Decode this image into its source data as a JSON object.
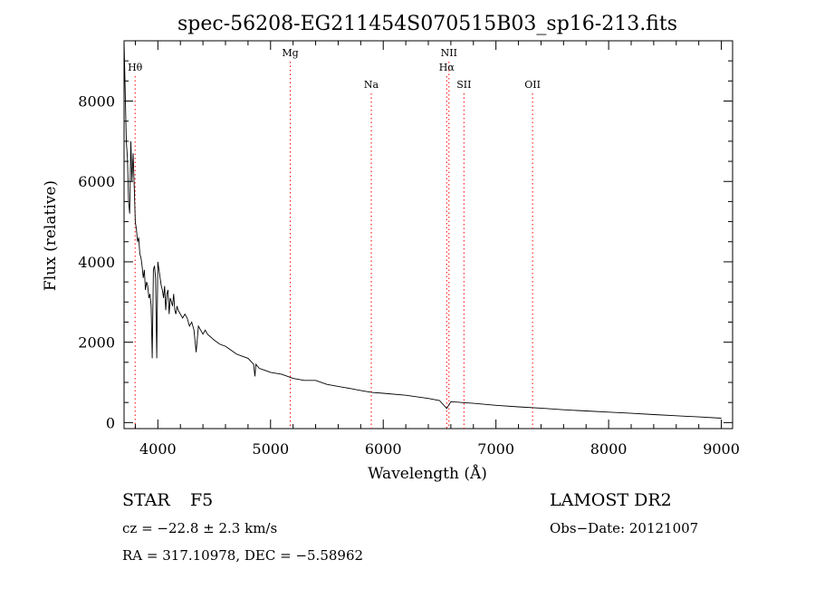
{
  "chart_data": {
    "type": "line",
    "title": "spec-56208-EG211454S070515B03_sp16-213.fits",
    "xlabel": "Wavelength (Å)",
    "ylabel": "Flux (relative)",
    "xlim": [
      3700,
      9100
    ],
    "ylim": [
      -150,
      9500
    ],
    "xticks": [
      4000,
      5000,
      6000,
      7000,
      8000,
      9000
    ],
    "yticks": [
      0,
      2000,
      4000,
      6000,
      8000
    ],
    "grid": false,
    "line_color": "#000000",
    "marker_color": "#ff0000",
    "series": [
      {
        "x": [
          3700,
          3710,
          3720,
          3730,
          3740,
          3750,
          3760,
          3770,
          3780,
          3790,
          3800,
          3810,
          3820,
          3830,
          3840,
          3850,
          3860,
          3870,
          3880,
          3890,
          3900,
          3910,
          3920,
          3930,
          3940,
          3950,
          3960,
          3970,
          3980,
          3990,
          4000,
          4010,
          4020,
          4030,
          4040,
          4050,
          4060,
          4070,
          4080,
          4090,
          4100,
          4110,
          4120,
          4130,
          4140,
          4150,
          4160,
          4170,
          4180,
          4200,
          4220,
          4240,
          4260,
          4280,
          4300,
          4320,
          4340,
          4360,
          4380,
          4400,
          4420,
          4440,
          4460,
          4480,
          4500,
          4550,
          4600,
          4650,
          4700,
          4750,
          4800,
          4850,
          4861,
          4870,
          4900,
          4950,
          5000,
          5100,
          5200,
          5300,
          5400,
          5500,
          5600,
          5700,
          5800,
          5900,
          6000,
          6200,
          6400,
          6500,
          6563,
          6600,
          6800,
          7000,
          7200,
          7400,
          7600,
          7800,
          8000,
          8200,
          8400,
          8600,
          8800,
          9000
        ],
        "y": [
          9500,
          8300,
          7000,
          6600,
          5500,
          5200,
          7000,
          6000,
          6700,
          5900,
          5000,
          4800,
          4500,
          4600,
          4200,
          4100,
          3900,
          3600,
          3800,
          3300,
          3500,
          3400,
          3100,
          3200,
          2900,
          1600,
          3800,
          3900,
          3600,
          1600,
          4000,
          3800,
          3600,
          3400,
          3300,
          3100,
          3400,
          2800,
          3200,
          3300,
          2700,
          3100,
          3000,
          2900,
          3200,
          2800,
          2700,
          2900,
          2800,
          2700,
          2600,
          2700,
          2600,
          2400,
          2500,
          2300,
          1750,
          2400,
          2300,
          2200,
          2300,
          2200,
          2150,
          2100,
          2050,
          1950,
          1900,
          1800,
          1700,
          1650,
          1600,
          1450,
          1150,
          1450,
          1350,
          1300,
          1250,
          1200,
          1100,
          1050,
          1050,
          950,
          900,
          850,
          800,
          750,
          730,
          680,
          600,
          550,
          350,
          520,
          480,
          430,
          390,
          360,
          320,
          290,
          260,
          230,
          200,
          170,
          140,
          110
        ]
      }
    ],
    "line_markers": [
      {
        "label": "Hθ",
        "x": 3798,
        "label_row": 1
      },
      {
        "label": "Mg",
        "x": 5175,
        "label_row": 0
      },
      {
        "label": "Na",
        "x": 5894,
        "label_row": 2
      },
      {
        "label": "NII",
        "x": 6583,
        "label_row": 0
      },
      {
        "label": "Hα",
        "x": 6563,
        "label_row": 1
      },
      {
        "label": "SII",
        "x": 6716,
        "label_row": 2
      },
      {
        "label": "OII",
        "x": 7325,
        "label_row": 2
      }
    ]
  },
  "footer": {
    "object_class": "STAR",
    "subclass": "F5",
    "survey": "LAMOST DR2",
    "redshift": "cz = −22.8 ± 2.3 km/s",
    "obs_date": "Obs−Date: 20121007",
    "coords": "RA = 317.10978, DEC =  −5.58962"
  }
}
